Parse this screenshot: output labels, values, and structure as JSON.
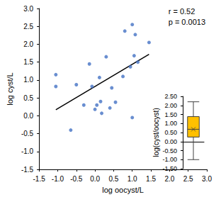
{
  "chart_data": [
    {
      "type": "scatter",
      "x_label": "log oocyst/L",
      "y_label": "log cyst/L",
      "x": [
        -1.05,
        -1.05,
        -0.65,
        -0.5,
        -0.3,
        -0.15,
        -0.08,
        0.0,
        0.05,
        0.12,
        0.15,
        0.18,
        0.3,
        0.4,
        0.45,
        0.55,
        0.75,
        0.8,
        0.95,
        1.0,
        1.0,
        1.05,
        1.08,
        1.15,
        1.45
      ],
      "values": [
        1.15,
        0.82,
        -0.4,
        0.87,
        0.3,
        1.45,
        0.82,
        0.18,
        0.3,
        1.07,
        0.4,
        0.07,
        1.65,
        0.22,
        0.78,
        0.38,
        1.1,
        2.37,
        1.37,
        2.55,
        -0.05,
        1.68,
        2.27,
        1.5,
        2.05
      ],
      "color": "#4472c4",
      "trendline": {
        "x": [
          -1.05,
          1.45
        ],
        "values": [
          0.17,
          1.72
        ],
        "color": "#000000"
      },
      "annotations": [
        "r = 0.52",
        "p = 0.0013"
      ],
      "xlim": [
        -1.5,
        3.0
      ],
      "xticks": [
        -1.5,
        {
          "value": -1,
          "label": "-1.0"
        },
        -0.5,
        {
          "value": 0,
          "label": "0.0"
        },
        0.5,
        {
          "value": 1,
          "label": "1.0"
        },
        1.5,
        {
          "value": 2,
          "label": "2.0"
        },
        2.5,
        {
          "value": 3,
          "label": "3.0"
        }
      ],
      "ylim": [
        -1.5,
        3.0
      ],
      "yticks": [
        -1.5,
        {
          "value": -1,
          "label": "-1.0"
        },
        -0.5,
        {
          "value": 0,
          "label": "0.0"
        },
        0.5,
        {
          "value": 1,
          "label": "1.0"
        },
        1.5,
        {
          "value": 2,
          "label": "2.0"
        },
        2.5,
        {
          "value": 3,
          "label": "3.0"
        }
      ],
      "grid": false
    },
    {
      "type": "boxplot",
      "y_label": "log(cyst/oocyst)",
      "min": -1.0,
      "q1": 0.25,
      "median": 0.68,
      "q3": 1.38,
      "max": 2.2,
      "mean": 0.68,
      "marker": "x",
      "color": "#ffc000",
      "ylim": [
        -1.5,
        2.5
      ],
      "yticks": [
        {
          "value": -1.5,
          "label": "-1.50"
        },
        {
          "value": -1,
          "label": "-1.00"
        },
        {
          "value": -0.5,
          "label": "-0.50"
        },
        {
          "value": 0,
          "label": "0.00"
        },
        {
          "value": 0.5,
          "label": "0.50"
        },
        {
          "value": 1,
          "label": "1.00"
        },
        {
          "value": 1.5,
          "label": "1.50"
        },
        {
          "value": 2,
          "label": "2.00"
        },
        {
          "value": 2.5,
          "label": "2.50"
        }
      ],
      "grid": false
    }
  ]
}
